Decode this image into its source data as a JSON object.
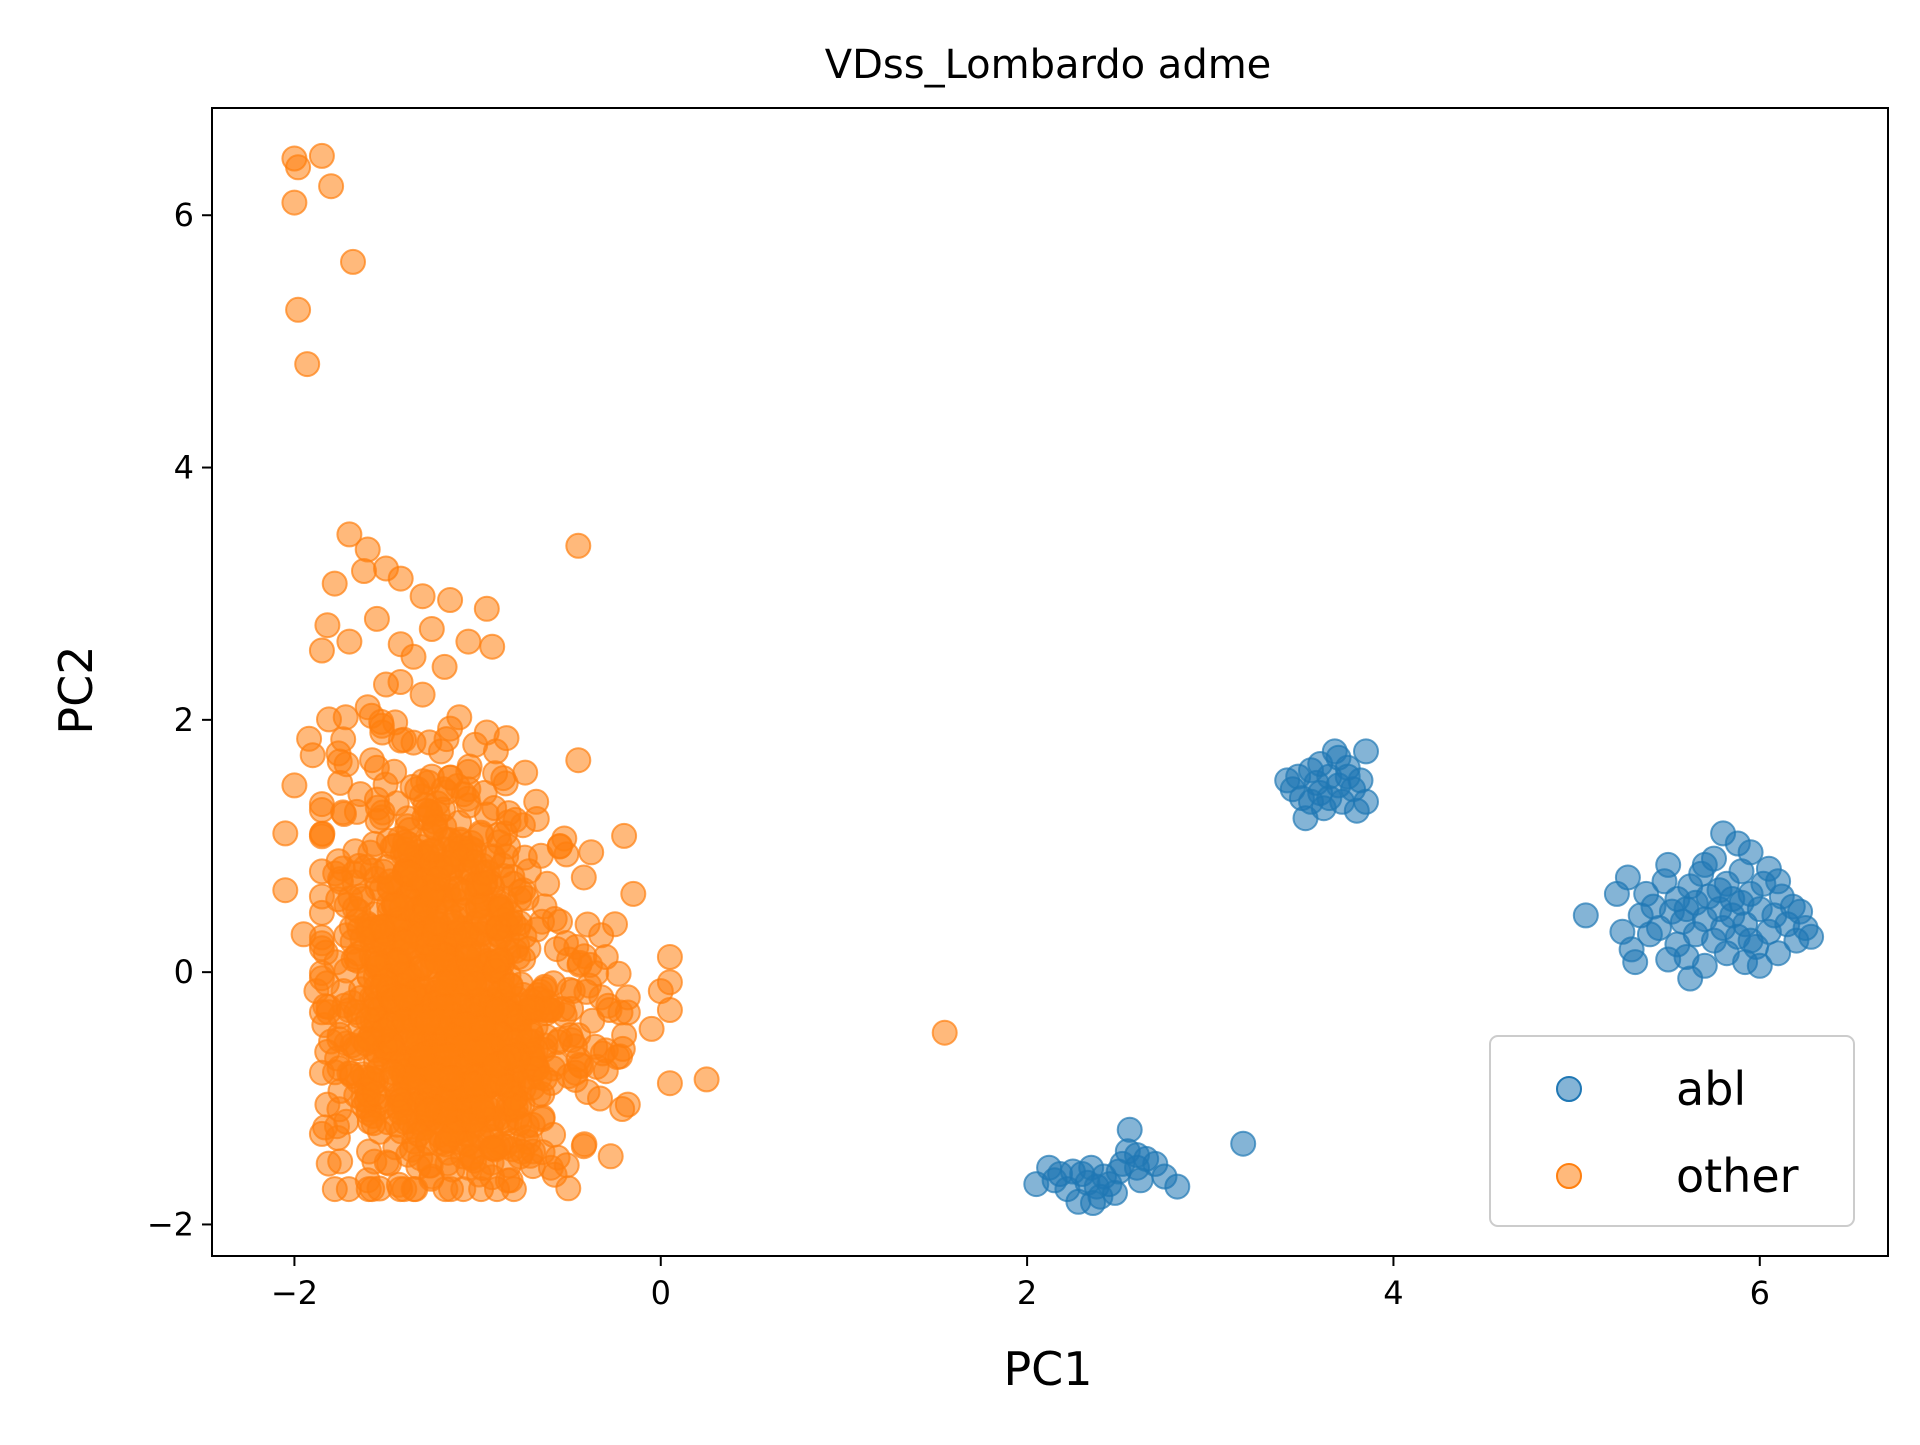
{
  "chart_data": {
    "type": "scatter",
    "title": "VDss_Lombardo adme",
    "xlabel": "PC1",
    "ylabel": "PC2",
    "xlim": [
      -2.45,
      6.7
    ],
    "ylim": [
      -2.25,
      6.85
    ],
    "xticks": [
      -2,
      0,
      2,
      4,
      6
    ],
    "yticks": [
      -2,
      0,
      2,
      4,
      6
    ],
    "xtick_labels": [
      "−2",
      "0",
      "2",
      "4",
      "6"
    ],
    "ytick_labels": [
      "−2",
      "0",
      "2",
      "4",
      "6"
    ],
    "grid": false,
    "legend": {
      "position": "bottom-right"
    },
    "series": [
      {
        "name": "abl",
        "color": "#1f77b4",
        "alpha": 0.55,
        "points": [
          [
            2.05,
            -1.68
          ],
          [
            2.12,
            -1.55
          ],
          [
            2.18,
            -1.6
          ],
          [
            2.22,
            -1.72
          ],
          [
            2.28,
            -1.82
          ],
          [
            2.3,
            -1.6
          ],
          [
            2.33,
            -1.67
          ],
          [
            2.35,
            -1.55
          ],
          [
            2.38,
            -1.7
          ],
          [
            2.4,
            -1.78
          ],
          [
            2.42,
            -1.62
          ],
          [
            2.45,
            -1.68
          ],
          [
            2.48,
            -1.75
          ],
          [
            2.5,
            -1.58
          ],
          [
            2.52,
            -1.52
          ],
          [
            2.55,
            -1.42
          ],
          [
            2.56,
            -1.25
          ],
          [
            2.6,
            -1.55
          ],
          [
            2.62,
            -1.65
          ],
          [
            2.65,
            -1.48
          ],
          [
            2.7,
            -1.52
          ],
          [
            2.75,
            -1.62
          ],
          [
            2.82,
            -1.7
          ],
          [
            3.18,
            -1.36
          ],
          [
            2.15,
            -1.65
          ],
          [
            2.25,
            -1.58
          ],
          [
            2.36,
            -1.83
          ],
          [
            2.6,
            -1.45
          ],
          [
            3.42,
            1.52
          ],
          [
            3.45,
            1.45
          ],
          [
            3.48,
            1.55
          ],
          [
            3.5,
            1.38
          ],
          [
            3.52,
            1.22
          ],
          [
            3.55,
            1.6
          ],
          [
            3.58,
            1.5
          ],
          [
            3.6,
            1.42
          ],
          [
            3.62,
            1.3
          ],
          [
            3.65,
            1.55
          ],
          [
            3.68,
            1.75
          ],
          [
            3.7,
            1.48
          ],
          [
            3.72,
            1.35
          ],
          [
            3.75,
            1.62
          ],
          [
            3.78,
            1.45
          ],
          [
            3.8,
            1.28
          ],
          [
            3.82,
            1.52
          ],
          [
            3.85,
            1.75
          ],
          [
            3.85,
            1.35
          ],
          [
            3.6,
            1.65
          ],
          [
            3.7,
            1.7
          ],
          [
            3.55,
            1.35
          ],
          [
            3.65,
            1.38
          ],
          [
            3.75,
            1.55
          ],
          [
            5.05,
            0.45
          ],
          [
            5.22,
            0.62
          ],
          [
            5.25,
            0.32
          ],
          [
            5.28,
            0.75
          ],
          [
            5.3,
            0.18
          ],
          [
            5.32,
            0.08
          ],
          [
            5.35,
            0.45
          ],
          [
            5.38,
            0.62
          ],
          [
            5.42,
            0.52
          ],
          [
            5.45,
            0.35
          ],
          [
            5.48,
            0.72
          ],
          [
            5.5,
            0.85
          ],
          [
            5.52,
            0.48
          ],
          [
            5.55,
            0.22
          ],
          [
            5.55,
            0.58
          ],
          [
            5.58,
            0.4
          ],
          [
            5.6,
            0.12
          ],
          [
            5.62,
            0.68
          ],
          [
            5.65,
            0.3
          ],
          [
            5.65,
            0.55
          ],
          [
            5.68,
            0.78
          ],
          [
            5.7,
            0.42
          ],
          [
            5.7,
            0.05
          ],
          [
            5.72,
            0.6
          ],
          [
            5.75,
            0.25
          ],
          [
            5.75,
            0.9
          ],
          [
            5.78,
            0.5
          ],
          [
            5.8,
            0.35
          ],
          [
            5.8,
            1.1
          ],
          [
            5.82,
            0.7
          ],
          [
            5.82,
            0.15
          ],
          [
            5.85,
            0.45
          ],
          [
            5.85,
            0.58
          ],
          [
            5.88,
            0.28
          ],
          [
            5.88,
            1.02
          ],
          [
            5.9,
            0.8
          ],
          [
            5.92,
            0.38
          ],
          [
            5.92,
            0.08
          ],
          [
            5.95,
            0.62
          ],
          [
            5.95,
            0.95
          ],
          [
            5.98,
            0.2
          ],
          [
            6.0,
            0.5
          ],
          [
            6.02,
            0.7
          ],
          [
            6.05,
            0.32
          ],
          [
            6.05,
            0.82
          ],
          [
            6.08,
            0.45
          ],
          [
            6.1,
            0.15
          ],
          [
            6.12,
            0.6
          ],
          [
            6.15,
            0.38
          ],
          [
            6.18,
            0.52
          ],
          [
            6.2,
            0.25
          ],
          [
            6.22,
            0.48
          ],
          [
            6.28,
            0.28
          ],
          [
            6.25,
            0.35
          ],
          [
            5.62,
            -0.05
          ],
          [
            5.5,
            0.1
          ],
          [
            5.4,
            0.3
          ],
          [
            5.7,
            0.85
          ],
          [
            5.95,
            0.25
          ],
          [
            6.0,
            0.05
          ],
          [
            5.6,
            0.5
          ],
          [
            5.78,
            0.65
          ],
          [
            5.9,
            0.55
          ],
          [
            6.1,
            0.72
          ]
        ]
      },
      {
        "name": "other",
        "color": "#ff7f0e",
        "alpha": 0.55,
        "points": [
          [
            -2.0,
            6.45
          ],
          [
            -1.98,
            6.38
          ],
          [
            -1.85,
            6.47
          ],
          [
            -1.8,
            6.23
          ],
          [
            -2.0,
            6.1
          ],
          [
            -1.68,
            5.63
          ],
          [
            -1.98,
            5.25
          ],
          [
            -1.93,
            4.82
          ],
          [
            -1.7,
            3.47
          ],
          [
            -1.6,
            3.35
          ],
          [
            -1.5,
            3.2
          ],
          [
            -1.42,
            3.12
          ],
          [
            -1.3,
            2.98
          ],
          [
            -1.15,
            2.95
          ],
          [
            -0.95,
            2.88
          ],
          [
            -1.62,
            3.18
          ],
          [
            -1.78,
            3.08
          ],
          [
            -1.55,
            2.8
          ],
          [
            -1.7,
            2.62
          ],
          [
            -1.42,
            2.6
          ],
          [
            -1.25,
            2.72
          ],
          [
            -1.05,
            2.62
          ],
          [
            -0.92,
            2.58
          ],
          [
            -1.82,
            2.75
          ],
          [
            -1.85,
            2.55
          ],
          [
            -1.35,
            2.5
          ],
          [
            -1.18,
            2.42
          ],
          [
            -1.5,
            2.28
          ],
          [
            -1.3,
            2.2
          ],
          [
            -1.6,
            2.1
          ],
          [
            -1.72,
            2.02
          ],
          [
            -1.45,
            1.98
          ],
          [
            -1.1,
            2.02
          ],
          [
            -0.95,
            1.9
          ],
          [
            -1.35,
            1.82
          ],
          [
            -1.52,
            1.9
          ],
          [
            -1.2,
            1.75
          ],
          [
            -0.9,
            1.75
          ],
          [
            -1.92,
            1.85
          ],
          [
            -1.9,
            1.72
          ],
          [
            -2.0,
            1.48
          ],
          [
            -1.75,
            1.5
          ],
          [
            -1.55,
            1.62
          ],
          [
            -1.25,
            1.55
          ],
          [
            -0.45,
            3.38
          ],
          [
            -0.45,
            1.68
          ],
          [
            -0.68,
            1.35
          ],
          [
            -0.72,
            0.8
          ],
          [
            -0.2,
            1.08
          ],
          [
            -0.15,
            0.62
          ],
          [
            -0.55,
            1.0
          ],
          [
            -0.38,
            0.95
          ],
          [
            -0.42,
            0.75
          ],
          [
            -2.05,
            1.1
          ],
          [
            -2.05,
            0.65
          ],
          [
            -0.3,
            0.12
          ],
          [
            -0.25,
            0.38
          ],
          [
            0.05,
            0.12
          ],
          [
            0.05,
            -0.08
          ],
          [
            0.0,
            -0.15
          ],
          [
            0.05,
            -0.3
          ],
          [
            0.05,
            -0.88
          ],
          [
            0.25,
            -0.85
          ],
          [
            -0.18,
            -0.32
          ],
          [
            -0.2,
            -0.5
          ],
          [
            -0.05,
            -0.45
          ],
          [
            -0.18,
            -0.2
          ],
          [
            -0.22,
            -0.32
          ],
          [
            -0.28,
            -0.3
          ],
          [
            -0.18,
            -1.05
          ],
          [
            -0.4,
            -0.95
          ],
          [
            -0.42,
            -1.38
          ],
          [
            -0.6,
            -1.55
          ],
          [
            -0.82,
            -1.65
          ],
          [
            -0.35,
            -0.75
          ],
          [
            -0.45,
            -0.5
          ],
          [
            -0.3,
            -0.62
          ],
          [
            1.55,
            -0.48
          ],
          [
            -1.05,
            -1.55
          ],
          [
            -1.25,
            -1.62
          ],
          [
            -1.4,
            -1.72
          ],
          [
            -1.6,
            -1.65
          ],
          [
            -1.75,
            -1.5
          ],
          [
            -1.82,
            -1.05
          ],
          [
            -1.88,
            -0.15
          ],
          [
            -1.95,
            0.3
          ],
          [
            -1.85,
            0.6
          ],
          [
            -1.75,
            -0.35
          ],
          [
            -1.7,
            -0.8
          ],
          [
            -1.8,
            -0.55
          ],
          [
            -0.85,
            1.1
          ],
          [
            -0.95,
            1.25
          ],
          [
            -1.05,
            1.45
          ],
          [
            -0.75,
            0.65
          ],
          [
            -0.62,
            0.7
          ],
          [
            -0.55,
            0.4
          ],
          [
            -0.5,
            0.1
          ],
          [
            -0.48,
            -0.15
          ],
          [
            -0.6,
            -0.3
          ],
          [
            -0.7,
            -0.55
          ]
        ],
        "clusters": [
          {
            "cx": -1.22,
            "cy": -0.15,
            "sx": 0.28,
            "sy": 0.72,
            "n": 650
          },
          {
            "cx": -1.3,
            "cy": 0.9,
            "sx": 0.3,
            "sy": 0.5,
            "n": 160
          },
          {
            "cx": -0.8,
            "cy": -0.55,
            "sx": 0.28,
            "sy": 0.45,
            "n": 160
          },
          {
            "cx": -1.1,
            "cy": -0.9,
            "sx": 0.3,
            "sy": 0.35,
            "n": 200
          }
        ]
      }
    ]
  }
}
